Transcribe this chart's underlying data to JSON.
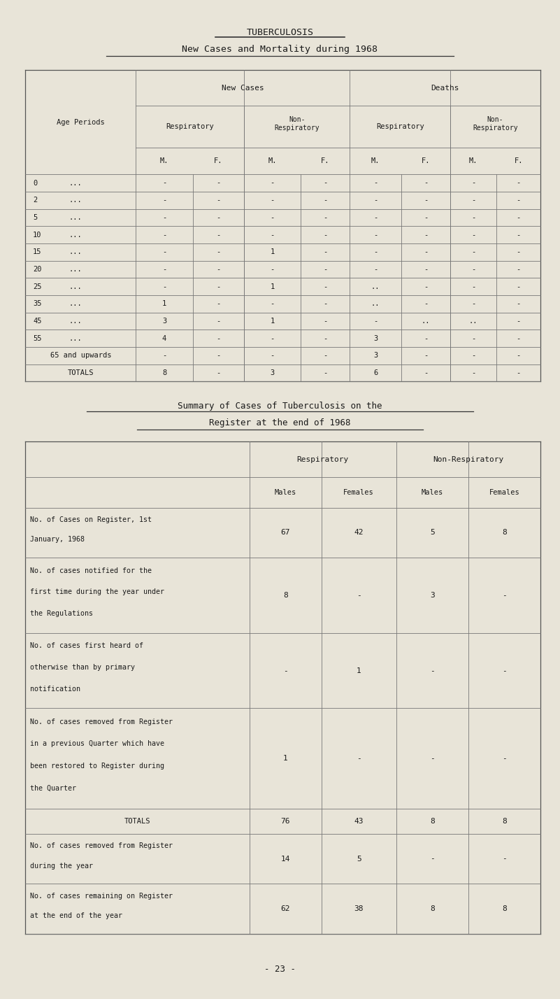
{
  "bg_color": "#e8e4d8",
  "title1": "TUBERCULOSIS",
  "title2": "New Cases and Mortality during 1968",
  "title3_line1": "Summary of Cases of Tuberculosis on the",
  "title3_line2": "Register at the end of 1968",
  "page_num": "- 23 -",
  "table1": {
    "row_labels": [
      [
        "0",
        "..."
      ],
      [
        "2",
        "..."
      ],
      [
        "5",
        "..."
      ],
      [
        "10",
        "..."
      ],
      [
        "15",
        "..."
      ],
      [
        "20",
        "..."
      ],
      [
        "25",
        "..."
      ],
      [
        "35",
        "..."
      ],
      [
        "45",
        "..."
      ],
      [
        "55",
        "..."
      ],
      [
        "65 and upwards",
        ""
      ],
      [
        "TOTALS",
        ""
      ]
    ],
    "data": [
      [
        "-",
        "-",
        "-",
        "-",
        "-",
        "-",
        "-",
        "-"
      ],
      [
        "-",
        "-",
        "-",
        "-",
        "-",
        "-",
        "-",
        "-"
      ],
      [
        "-",
        "-",
        "-",
        "-",
        "-",
        "-",
        "-",
        "-"
      ],
      [
        "-",
        "-",
        "-",
        "-",
        "-",
        "-",
        "-",
        "-"
      ],
      [
        "-",
        "-",
        "1",
        "-",
        "-",
        "-",
        "-",
        "-"
      ],
      [
        "-",
        "-",
        "-",
        "-",
        "-",
        "-",
        "-",
        "-"
      ],
      [
        "-",
        "-",
        "1",
        "-",
        "..",
        "-",
        "-",
        "-"
      ],
      [
        "1",
        "-",
        "-",
        "-",
        "..",
        "-",
        "-",
        "-"
      ],
      [
        "3",
        "-",
        "1",
        "-",
        "-",
        "..",
        "..",
        "-"
      ],
      [
        "4",
        "-",
        "-",
        "-",
        "3",
        "-",
        "-",
        "-"
      ],
      [
        "-",
        "-",
        "-",
        "-",
        "3",
        "-",
        "-",
        "-"
      ],
      [
        "8",
        "-",
        "3",
        "-",
        "6",
        "-",
        "-",
        "-"
      ]
    ]
  },
  "table2_rows": [
    {
      "label_lines": [
        "No. of Cases on Register, 1st",
        "January, 1968"
      ],
      "vals": [
        "67",
        "42",
        "5",
        "8"
      ]
    },
    {
      "label_lines": [
        "No. of cases notified for the",
        "first time during the year under",
        "the Regulations"
      ],
      "vals": [
        "8",
        "-",
        "3",
        "-"
      ]
    },
    {
      "label_lines": [
        "No. of cases first heard of",
        "otherwise than by primary",
        "notification"
      ],
      "vals": [
        "-",
        "1",
        "-",
        "-"
      ]
    },
    {
      "label_lines": [
        "No. of cases removed from Register",
        "in a previous Quarter which have",
        "been restored to Register during",
        "the Quarter"
      ],
      "vals": [
        "1",
        "-",
        "-",
        "-"
      ]
    },
    {
      "label_lines": [
        "TOTALS"
      ],
      "vals": [
        "76",
        "43",
        "8",
        "8"
      ],
      "is_total": true
    },
    {
      "label_lines": [
        "No. of cases removed from Register",
        "during the year"
      ],
      "vals": [
        "14",
        "5",
        "-",
        "-"
      ]
    },
    {
      "label_lines": [
        "No. of cases remaining on Register",
        "at the end of the year"
      ],
      "vals": [
        "62",
        "38",
        "8",
        "8"
      ]
    }
  ]
}
